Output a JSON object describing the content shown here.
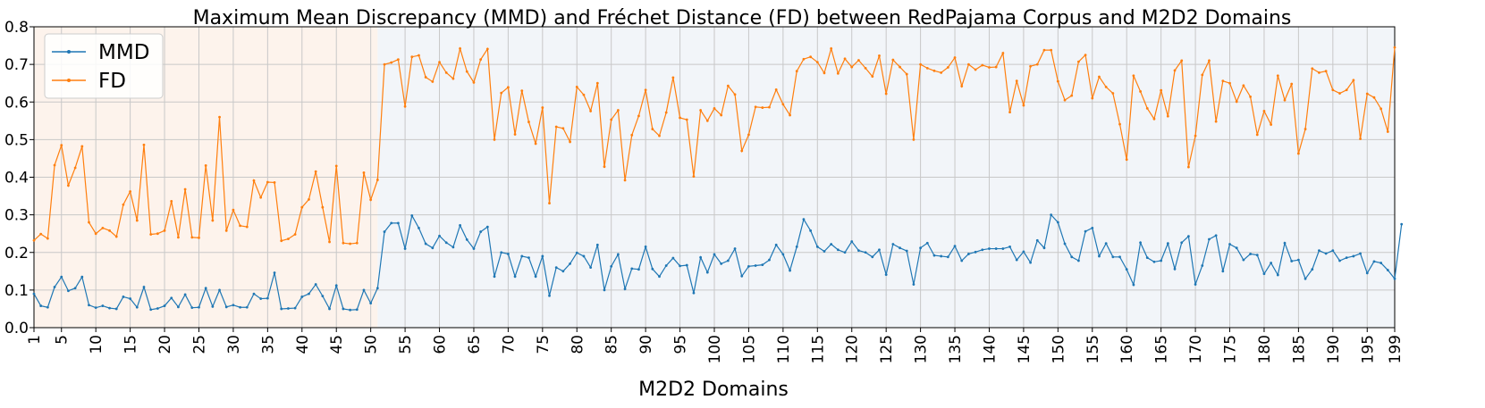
{
  "chart_data": {
    "type": "line",
    "title": "Maximum Mean Discrepancy (MMD) and Fréchet Distance (FD) between RedPajama Corpus and M2D2 Domains",
    "xlabel": "M2D2 Domains",
    "ylabel": "",
    "xlim": [
      1,
      199
    ],
    "ylim": [
      0.0,
      0.8
    ],
    "x_tick_labels": [
      "1",
      "5",
      "10",
      "15",
      "20",
      "25",
      "30",
      "35",
      "40",
      "45",
      "50",
      "55",
      "60",
      "65",
      "70",
      "75",
      "80",
      "85",
      "90",
      "95",
      "100",
      "105",
      "110",
      "115",
      "120",
      "125",
      "130",
      "135",
      "140",
      "145",
      "150",
      "155",
      "160",
      "165",
      "170",
      "175",
      "180",
      "185",
      "190",
      "195",
      "199"
    ],
    "y_tick_labels": [
      "0.0",
      "0.1",
      "0.2",
      "0.3",
      "0.4",
      "0.5",
      "0.6",
      "0.7",
      "0.8"
    ],
    "grid": true,
    "legend_position": "top-left",
    "background_regions": [
      {
        "x_start": 1,
        "x_end": 51,
        "color": "#fdf3ec"
      },
      {
        "x_start": 51,
        "x_end": 199,
        "color": "#f2f5f9"
      }
    ],
    "series": [
      {
        "name": "MMD",
        "color": "#1f77b4",
        "values": [
          0.09,
          0.058,
          0.054,
          0.108,
          0.135,
          0.098,
          0.105,
          0.135,
          0.06,
          0.053,
          0.058,
          0.052,
          0.05,
          0.082,
          0.077,
          0.054,
          0.108,
          0.048,
          0.051,
          0.058,
          0.079,
          0.055,
          0.088,
          0.053,
          0.054,
          0.105,
          0.056,
          0.1,
          0.055,
          0.06,
          0.054,
          0.054,
          0.09,
          0.077,
          0.078,
          0.146,
          0.05,
          0.051,
          0.052,
          0.082,
          0.09,
          0.115,
          0.084,
          0.05,
          0.112,
          0.05,
          0.047,
          0.048,
          0.1,
          0.065,
          0.105,
          0.255,
          0.278,
          0.278,
          0.21,
          0.298,
          0.265,
          0.223,
          0.212,
          0.244,
          0.226,
          0.214,
          0.272,
          0.234,
          0.21,
          0.255,
          0.268,
          0.136,
          0.2,
          0.196,
          0.136,
          0.19,
          0.186,
          0.136,
          0.19,
          0.085,
          0.16,
          0.15,
          0.17,
          0.199,
          0.19,
          0.16,
          0.22,
          0.1,
          0.163,
          0.195,
          0.103,
          0.157,
          0.155,
          0.215,
          0.156,
          0.136,
          0.165,
          0.185,
          0.164,
          0.166,
          0.092,
          0.187,
          0.147,
          0.195,
          0.17,
          0.178,
          0.21,
          0.137,
          0.163,
          0.165,
          0.167,
          0.18,
          0.22,
          0.195,
          0.152,
          0.215,
          0.288,
          0.258,
          0.215,
          0.203,
          0.222,
          0.207,
          0.2,
          0.229,
          0.205,
          0.2,
          0.188,
          0.207,
          0.141,
          0.222,
          0.212,
          0.204,
          0.115,
          0.212,
          0.225,
          0.192,
          0.19,
          0.188,
          0.217,
          0.178,
          0.196,
          0.201,
          0.207,
          0.21,
          0.21,
          0.21,
          0.215,
          0.18,
          0.202,
          0.173,
          0.232,
          0.212,
          0.3,
          0.28,
          0.223,
          0.188,
          0.178,
          0.256,
          0.265,
          0.19,
          0.224,
          0.188,
          0.188,
          0.155,
          0.114,
          0.226,
          0.186,
          0.175,
          0.178,
          0.224,
          0.156,
          0.226,
          0.243,
          0.115,
          0.165,
          0.235,
          0.245,
          0.15,
          0.222,
          0.212,
          0.18,
          0.196,
          0.193,
          0.143,
          0.172,
          0.14,
          0.225,
          0.177,
          0.18,
          0.13,
          0.155,
          0.205,
          0.197,
          0.205,
          0.178,
          0.186,
          0.19,
          0.197,
          0.145,
          0.176,
          0.172,
          0.153,
          0.13,
          0.275
        ]
      },
      {
        "name": "FD",
        "color": "#ff7f0e",
        "values": [
          0.232,
          0.249,
          0.237,
          0.432,
          0.485,
          0.378,
          0.425,
          0.482,
          0.28,
          0.25,
          0.265,
          0.258,
          0.242,
          0.327,
          0.362,
          0.285,
          0.486,
          0.248,
          0.25,
          0.258,
          0.336,
          0.24,
          0.368,
          0.24,
          0.239,
          0.431,
          0.285,
          0.56,
          0.258,
          0.313,
          0.271,
          0.268,
          0.391,
          0.346,
          0.387,
          0.386,
          0.231,
          0.236,
          0.248,
          0.32,
          0.341,
          0.415,
          0.32,
          0.228,
          0.43,
          0.225,
          0.223,
          0.225,
          0.412,
          0.34,
          0.393,
          0.7,
          0.705,
          0.713,
          0.588,
          0.72,
          0.724,
          0.666,
          0.654,
          0.706,
          0.678,
          0.662,
          0.742,
          0.681,
          0.652,
          0.713,
          0.741,
          0.5,
          0.624,
          0.639,
          0.514,
          0.63,
          0.547,
          0.489,
          0.585,
          0.331,
          0.534,
          0.53,
          0.494,
          0.64,
          0.619,
          0.576,
          0.65,
          0.428,
          0.553,
          0.578,
          0.392,
          0.512,
          0.563,
          0.632,
          0.528,
          0.51,
          0.572,
          0.665,
          0.558,
          0.553,
          0.402,
          0.578,
          0.55,
          0.583,
          0.565,
          0.643,
          0.62,
          0.47,
          0.513,
          0.587,
          0.585,
          0.586,
          0.633,
          0.594,
          0.565,
          0.682,
          0.714,
          0.72,
          0.706,
          0.677,
          0.742,
          0.676,
          0.715,
          0.693,
          0.711,
          0.69,
          0.668,
          0.723,
          0.622,
          0.712,
          0.693,
          0.674,
          0.5,
          0.7,
          0.69,
          0.683,
          0.678,
          0.692,
          0.718,
          0.642,
          0.7,
          0.686,
          0.698,
          0.692,
          0.693,
          0.73,
          0.573,
          0.656,
          0.591,
          0.695,
          0.7,
          0.738,
          0.738,
          0.655,
          0.605,
          0.617,
          0.707,
          0.725,
          0.61,
          0.667,
          0.64,
          0.623,
          0.541,
          0.447,
          0.67,
          0.628,
          0.583,
          0.555,
          0.631,
          0.562,
          0.684,
          0.71,
          0.427,
          0.51,
          0.672,
          0.71,
          0.548,
          0.656,
          0.65,
          0.601,
          0.644,
          0.614,
          0.513,
          0.576,
          0.54,
          0.67,
          0.605,
          0.648,
          0.463,
          0.528,
          0.689,
          0.678,
          0.682,
          0.632,
          0.623,
          0.632,
          0.658,
          0.502,
          0.622,
          0.612,
          0.582,
          0.521,
          0.745
        ]
      }
    ]
  }
}
